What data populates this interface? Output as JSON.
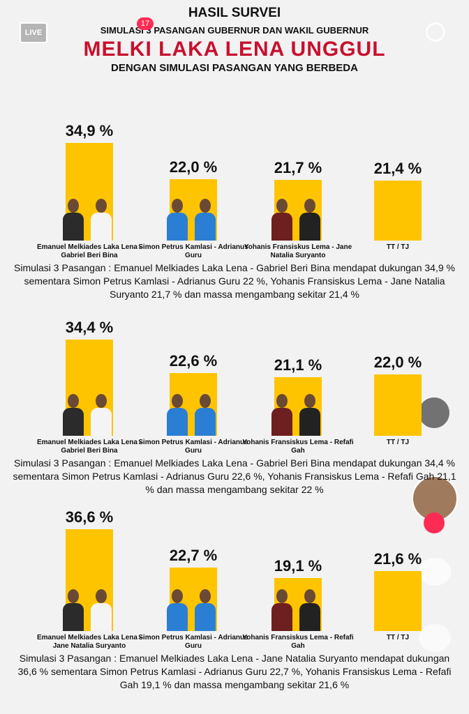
{
  "header": {
    "title": "HASIL SURVEI",
    "subtitle": "SIMULASI 3 PASANGAN GUBERNUR DAN WAKIL GUBERNUR",
    "headline": "MELKI LAKA LENA UNGGUL",
    "tagline": "DENGAN SIMULASI PASANGAN YANG BERBEDA"
  },
  "ui": {
    "live": "LIVE",
    "badge": "17"
  },
  "chart_data": [
    {
      "type": "bar",
      "color": "#ffc400",
      "categories": [
        "Emanuel Melkiades Laka Lena - Gabriel Beri Bina",
        "Simon Petrus Kamlasi - Adrianus Guru",
        "Yohanis Fransiskus Lema - Jane Natalia Suryanto",
        "TT / TJ"
      ],
      "values": [
        34.9,
        22.0,
        21.7,
        21.4
      ],
      "value_labels": [
        "34,9 %",
        "22,0 %",
        "21,7 %",
        "21,4 %"
      ],
      "caption": "Simulasi 3 Pasangan : Emanuel Melkiades Laka Lena - Gabriel Beri Bina mendapat dukungan 34,9 % sementara Simon Petrus Kamlasi - Adrianus Guru 22 %, Yohanis Fransiskus Lema - Jane Natalia Suryanto 21,7 % dan massa mengambang sekitar 21,4 %"
    },
    {
      "type": "bar",
      "color": "#ffc400",
      "categories": [
        "Emanuel Melkiades Laka Lena - Gabriel Beri Bina",
        "Simon Petrus Kamlasi - Adrianus Guru",
        "Yohanis Fransiskus Lema - Refafi Gah",
        "TT / TJ"
      ],
      "values": [
        34.4,
        22.6,
        21.1,
        22.0
      ],
      "value_labels": [
        "34,4 %",
        "22,6 %",
        "21,1 %",
        "22,0 %"
      ],
      "caption": "Simulasi 3 Pasangan : Emanuel Melkiades Laka Lena - Gabriel Beri Bina mendapat dukungan 34,4 % sementara Simon Petrus Kamlasi - Adrianus Guru 22,6 %, Yohanis Fransiskus Lema - Refafi Gah 21,1 % dan massa mengambang sekitar 22 %"
    },
    {
      "type": "bar",
      "color": "#ffc400",
      "categories": [
        "Emanuel Melkiades Laka Lena - Jane Natalia Suryanto",
        "Simon Petrus Kamlasi - Adrianus Guru",
        "Yohanis Fransiskus Lema - Refafi Gah",
        "TT / TJ"
      ],
      "values": [
        36.6,
        22.7,
        19.1,
        21.6
      ],
      "value_labels": [
        "36,6 %",
        "22,7 %",
        "19,1 %",
        "21,6 %"
      ],
      "caption": "Simulasi 3 Pasangan : Emanuel Melkiades Laka Lena - Jane Natalia Suryanto mendapat dukungan 36,6 % sementara Simon Petrus Kamlasi - Adrianus Guru 22,7 %, Yohanis Fransiskus Lema - Refafi Gah 19,1 % dan massa mengambang sekitar 21,6 %"
    }
  ]
}
